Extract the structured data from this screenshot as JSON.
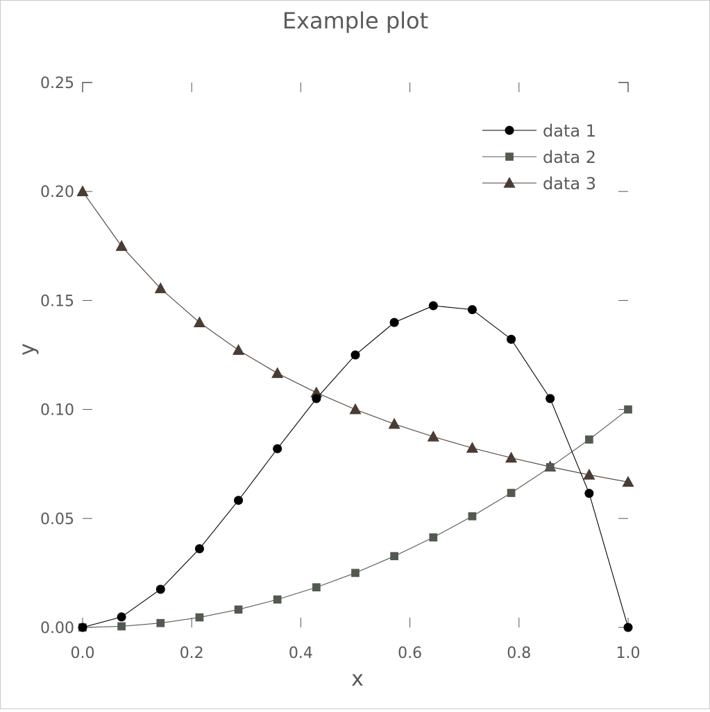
{
  "chart_data": {
    "type": "line",
    "title": "Example plot",
    "xlabel": "x",
    "ylabel": "y",
    "xlim": [
      0.0,
      1.0
    ],
    "ylim": [
      0.0,
      0.25
    ],
    "xticks": [
      "0.0",
      "0.2",
      "0.4",
      "0.6",
      "0.8",
      "1.0"
    ],
    "yticks": [
      "0.00",
      "0.05",
      "0.10",
      "0.15",
      "0.20",
      "0.25"
    ],
    "grid": false,
    "legend_position": "top-right",
    "x": [
      0.0,
      0.0714,
      0.1429,
      0.2143,
      0.2857,
      0.3571,
      0.4286,
      0.5,
      0.5714,
      0.6429,
      0.7143,
      0.7857,
      0.8571,
      0.9286,
      1.0
    ],
    "series": [
      {
        "name": "data 1",
        "marker": "circle",
        "color": "#000000",
        "values": [
          0.0,
          0.0048,
          0.0175,
          0.0361,
          0.0583,
          0.082,
          0.105,
          0.125,
          0.1399,
          0.1476,
          0.1458,
          0.1322,
          0.105,
          0.0615,
          0.0
        ]
      },
      {
        "name": "data 2",
        "marker": "square",
        "color": "#525a50",
        "values": [
          0.0,
          0.0005,
          0.002,
          0.0046,
          0.0082,
          0.0128,
          0.0184,
          0.025,
          0.0327,
          0.0413,
          0.051,
          0.0617,
          0.0735,
          0.0862,
          0.1
        ]
      },
      {
        "name": "data 3",
        "marker": "triangle",
        "color": "#4a3c34",
        "values": [
          0.2,
          0.1749,
          0.1555,
          0.1399,
          0.1272,
          0.1166,
          0.1077,
          0.1,
          0.0933,
          0.0875,
          0.0823,
          0.0778,
          0.0737,
          0.07,
          0.0667
        ]
      }
    ]
  }
}
